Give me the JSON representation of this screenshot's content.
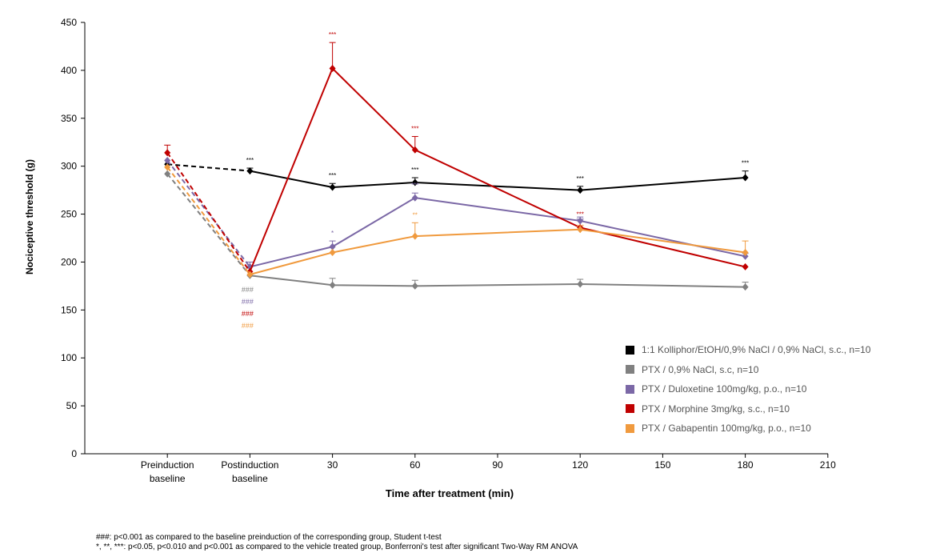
{
  "chart_data": {
    "type": "line",
    "ylabel": "Nociceptive threshold (g)",
    "xlabel": "Time after treatment (min)",
    "ylim": [
      0,
      450
    ],
    "yticks": [
      0,
      50,
      100,
      150,
      200,
      250,
      300,
      350,
      400,
      450
    ],
    "xtick_labels": [
      {
        "label": "Preinduction baseline",
        "lines": [
          "Preinduction",
          "baseline"
        ]
      },
      {
        "label": "Postinduction baseline",
        "lines": [
          "Postinduction",
          "baseline"
        ]
      },
      {
        "label": "30",
        "lines": [
          "30"
        ]
      },
      {
        "label": "60",
        "lines": [
          "60"
        ]
      },
      {
        "label": "90",
        "lines": [
          "90"
        ]
      },
      {
        "label": "120",
        "lines": [
          "120"
        ]
      },
      {
        "label": "150",
        "lines": [
          "150"
        ]
      },
      {
        "label": "180",
        "lines": [
          "180"
        ]
      },
      {
        "label": "210",
        "lines": [
          "210"
        ]
      }
    ],
    "x": [
      "Preinduction baseline",
      "Postinduction baseline",
      "30",
      "60",
      "120",
      "180"
    ],
    "series": [
      {
        "name": "1:1 Kolliphor/EtOH/0,9% NaCl / 0,9% NaCl, s.c., n=10",
        "color": "#000000",
        "values": [
          302,
          295,
          278,
          283,
          275,
          288
        ],
        "err": [
          0,
          3,
          4,
          5,
          4,
          7
        ]
      },
      {
        "name": "PTX / 0,9% NaCl, s.c, n=10",
        "color": "#808080",
        "values": [
          292,
          186,
          176,
          175,
          177,
          174
        ],
        "err": [
          0,
          0,
          7,
          6,
          5,
          5
        ]
      },
      {
        "name": "PTX / Duloxetine 100mg/kg, p.o., n=10",
        "color": "#7b68a6",
        "values": [
          306,
          195,
          216,
          267,
          243,
          206
        ],
        "err": [
          0,
          5,
          6,
          5,
          4,
          3
        ]
      },
      {
        "name": "PTX / Morphine 3mg/kg, s.c., n=10",
        "color": "#c00000",
        "values": [
          314,
          190,
          402,
          317,
          236,
          195
        ],
        "err": [
          8,
          0,
          27,
          14,
          0,
          0
        ]
      },
      {
        "name": "PTX / Gabapentin 100mg/kg, p.o., n=10",
        "color": "#f09a3e",
        "values": [
          299,
          187,
          210,
          227,
          234,
          210
        ],
        "err": [
          0,
          0,
          0,
          14,
          0,
          12
        ]
      }
    ],
    "significance": [
      {
        "text": "***",
        "point": 1,
        "series": 0
      },
      {
        "text": "***",
        "point": 2,
        "series": 0
      },
      {
        "text": "***",
        "point": 3,
        "series": 0
      },
      {
        "text": "***",
        "point": 4,
        "series": 0
      },
      {
        "text": "***",
        "point": 5,
        "series": 0
      },
      {
        "text": "***",
        "point": 2,
        "series": 3
      },
      {
        "text": "***",
        "point": 3,
        "series": 3
      },
      {
        "text": "*",
        "point": 2,
        "series": 2
      },
      {
        "text": "***",
        "point": 3,
        "series": 2
      },
      {
        "text": "**",
        "point": 3,
        "series": 4
      },
      {
        "text": "***",
        "point": 4,
        "series": 3
      },
      {
        "text": "***",
        "point": 4,
        "series": 2
      },
      {
        "text": "***",
        "point": 4,
        "series": 4
      }
    ],
    "hash_marks": [
      {
        "text": "###",
        "series": 1
      },
      {
        "text": "###",
        "series": 2
      },
      {
        "text": "###",
        "series": 3
      },
      {
        "text": "###",
        "series": 4
      }
    ]
  },
  "footnotes": [
    "###: p<0.001 as compared to the baseline preinduction of the corresponding group, Student t-test",
    "*, **, ***: p<0.05, p<0.010 and p<0.001 as compared to the vehicle treated group, Bonferroni's test after significant Two-Way RM ANOVA"
  ]
}
